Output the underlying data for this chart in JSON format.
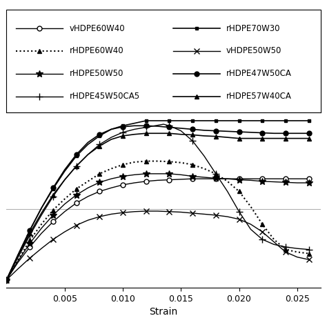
{
  "xlabel": "Strain",
  "xlim": [
    0.0,
    0.027
  ],
  "xticks": [
    0.005,
    0.01,
    0.015,
    0.02,
    0.025
  ],
  "hline_y": 14.0,
  "series": [
    {
      "label": "vHDPE60W40",
      "marker": "o",
      "markerfacecolor": "white",
      "markeredgecolor": "black",
      "color": "black",
      "linestyle": "-",
      "linewidth": 1.0,
      "markersize": 5,
      "markevery": 2,
      "points": [
        [
          0.0,
          0.0
        ],
        [
          0.001,
          3.5
        ],
        [
          0.002,
          6.5
        ],
        [
          0.003,
          9.2
        ],
        [
          0.004,
          11.5
        ],
        [
          0.005,
          13.5
        ],
        [
          0.006,
          15.2
        ],
        [
          0.007,
          16.5
        ],
        [
          0.008,
          17.5
        ],
        [
          0.009,
          18.2
        ],
        [
          0.01,
          18.8
        ],
        [
          0.011,
          19.2
        ],
        [
          0.012,
          19.5
        ],
        [
          0.013,
          19.7
        ],
        [
          0.014,
          19.8
        ],
        [
          0.015,
          19.9
        ],
        [
          0.016,
          20.0
        ],
        [
          0.017,
          20.0
        ],
        [
          0.018,
          20.0
        ],
        [
          0.019,
          20.0
        ],
        [
          0.02,
          20.0
        ],
        [
          0.021,
          20.0
        ],
        [
          0.022,
          20.0
        ],
        [
          0.023,
          20.0
        ],
        [
          0.024,
          20.0
        ],
        [
          0.025,
          20.0
        ],
        [
          0.026,
          20.0
        ]
      ]
    },
    {
      "label": "rHDPE60W40",
      "marker": "^",
      "markerfacecolor": "black",
      "markeredgecolor": "black",
      "color": "black",
      "linestyle": ":",
      "linewidth": 1.5,
      "markersize": 4,
      "markevery": 2,
      "points": [
        [
          0.0,
          0.0
        ],
        [
          0.001,
          4.0
        ],
        [
          0.002,
          7.8
        ],
        [
          0.003,
          11.0
        ],
        [
          0.004,
          13.8
        ],
        [
          0.005,
          16.0
        ],
        [
          0.006,
          18.0
        ],
        [
          0.007,
          19.5
        ],
        [
          0.008,
          21.0
        ],
        [
          0.009,
          22.0
        ],
        [
          0.01,
          22.8
        ],
        [
          0.011,
          23.3
        ],
        [
          0.012,
          23.5
        ],
        [
          0.013,
          23.5
        ],
        [
          0.014,
          23.4
        ],
        [
          0.015,
          23.2
        ],
        [
          0.016,
          22.8
        ],
        [
          0.017,
          22.0
        ],
        [
          0.018,
          21.0
        ],
        [
          0.019,
          19.5
        ],
        [
          0.02,
          17.5
        ],
        [
          0.021,
          14.5
        ],
        [
          0.022,
          11.0
        ],
        [
          0.023,
          8.0
        ],
        [
          0.024,
          6.0
        ],
        [
          0.025,
          5.5
        ],
        [
          0.026,
          5.2
        ]
      ]
    },
    {
      "label": "rHDPE50W50",
      "marker": "*",
      "markerfacecolor": "black",
      "markeredgecolor": "black",
      "color": "black",
      "linestyle": "-",
      "linewidth": 1.0,
      "markersize": 7,
      "markevery": 2,
      "points": [
        [
          0.0,
          0.0
        ],
        [
          0.001,
          3.8
        ],
        [
          0.002,
          7.2
        ],
        [
          0.003,
          10.2
        ],
        [
          0.004,
          12.8
        ],
        [
          0.005,
          15.0
        ],
        [
          0.006,
          16.8
        ],
        [
          0.007,
          18.2
        ],
        [
          0.008,
          19.3
        ],
        [
          0.009,
          20.0
        ],
        [
          0.01,
          20.5
        ],
        [
          0.011,
          20.8
        ],
        [
          0.012,
          21.0
        ],
        [
          0.013,
          21.0
        ],
        [
          0.014,
          21.0
        ],
        [
          0.015,
          20.8
        ],
        [
          0.016,
          20.5
        ],
        [
          0.017,
          20.3
        ],
        [
          0.018,
          20.1
        ],
        [
          0.019,
          20.0
        ],
        [
          0.02,
          19.8
        ],
        [
          0.021,
          19.7
        ],
        [
          0.022,
          19.5
        ],
        [
          0.023,
          19.4
        ],
        [
          0.024,
          19.3
        ],
        [
          0.025,
          19.2
        ],
        [
          0.026,
          19.2
        ]
      ]
    },
    {
      "label": "rHDPE45W50CA5",
      "marker": "+",
      "markerfacecolor": "black",
      "markeredgecolor": "black",
      "color": "black",
      "linestyle": "-",
      "linewidth": 1.0,
      "markersize": 7,
      "markevery": 2,
      "points": [
        [
          0.0,
          0.0
        ],
        [
          0.001,
          4.5
        ],
        [
          0.002,
          8.8
        ],
        [
          0.003,
          12.8
        ],
        [
          0.004,
          16.5
        ],
        [
          0.005,
          19.8
        ],
        [
          0.006,
          22.5
        ],
        [
          0.007,
          24.8
        ],
        [
          0.008,
          26.8
        ],
        [
          0.009,
          28.2
        ],
        [
          0.01,
          29.2
        ],
        [
          0.011,
          29.8
        ],
        [
          0.012,
          30.2
        ],
        [
          0.0135,
          30.8
        ],
        [
          0.014,
          30.5
        ],
        [
          0.015,
          29.5
        ],
        [
          0.016,
          27.5
        ],
        [
          0.017,
          24.5
        ],
        [
          0.018,
          21.0
        ],
        [
          0.019,
          17.5
        ],
        [
          0.02,
          13.5
        ],
        [
          0.021,
          10.0
        ],
        [
          0.022,
          8.0
        ],
        [
          0.023,
          7.0
        ],
        [
          0.024,
          6.5
        ],
        [
          0.025,
          6.2
        ],
        [
          0.026,
          6.0
        ]
      ]
    },
    {
      "label": "rHDPE70W30",
      "marker": "s",
      "markerfacecolor": "black",
      "markeredgecolor": "black",
      "color": "black",
      "linestyle": "-",
      "linewidth": 1.2,
      "markersize": 3,
      "markevery": 2,
      "points": [
        [
          0.0,
          0.0
        ],
        [
          0.001,
          5.0
        ],
        [
          0.002,
          9.8
        ],
        [
          0.003,
          14.2
        ],
        [
          0.004,
          18.0
        ],
        [
          0.005,
          21.5
        ],
        [
          0.006,
          24.5
        ],
        [
          0.007,
          26.8
        ],
        [
          0.008,
          28.5
        ],
        [
          0.009,
          29.8
        ],
        [
          0.01,
          30.5
        ],
        [
          0.011,
          31.0
        ],
        [
          0.012,
          31.5
        ],
        [
          0.013,
          31.5
        ],
        [
          0.014,
          31.5
        ],
        [
          0.015,
          31.5
        ],
        [
          0.016,
          31.5
        ],
        [
          0.017,
          31.5
        ],
        [
          0.018,
          31.5
        ],
        [
          0.019,
          31.5
        ],
        [
          0.02,
          31.5
        ],
        [
          0.021,
          31.5
        ],
        [
          0.022,
          31.5
        ],
        [
          0.023,
          31.5
        ],
        [
          0.024,
          31.5
        ],
        [
          0.025,
          31.5
        ],
        [
          0.026,
          31.5
        ]
      ]
    },
    {
      "label": "vHDPE50W50",
      "marker": "x",
      "markerfacecolor": "black",
      "markeredgecolor": "black",
      "color": "black",
      "linestyle": "-",
      "linewidth": 1.0,
      "markersize": 6,
      "markevery": 2,
      "points": [
        [
          0.0,
          0.0
        ],
        [
          0.001,
          2.2
        ],
        [
          0.002,
          4.3
        ],
        [
          0.003,
          6.2
        ],
        [
          0.004,
          8.0
        ],
        [
          0.005,
          9.5
        ],
        [
          0.006,
          10.8
        ],
        [
          0.007,
          11.8
        ],
        [
          0.008,
          12.5
        ],
        [
          0.009,
          13.0
        ],
        [
          0.01,
          13.3
        ],
        [
          0.011,
          13.5
        ],
        [
          0.012,
          13.6
        ],
        [
          0.013,
          13.6
        ],
        [
          0.014,
          13.5
        ],
        [
          0.015,
          13.4
        ],
        [
          0.016,
          13.2
        ],
        [
          0.017,
          13.0
        ],
        [
          0.018,
          12.8
        ],
        [
          0.019,
          12.5
        ],
        [
          0.02,
          12.0
        ],
        [
          0.021,
          11.0
        ],
        [
          0.022,
          9.5
        ],
        [
          0.023,
          7.5
        ],
        [
          0.024,
          5.5
        ],
        [
          0.025,
          4.5
        ],
        [
          0.026,
          4.0
        ]
      ]
    },
    {
      "label": "rHDPE47W50CA",
      "marker": "o",
      "markerfacecolor": "black",
      "markeredgecolor": "black",
      "color": "black",
      "linestyle": "-",
      "linewidth": 1.2,
      "markersize": 5,
      "markevery": 2,
      "points": [
        [
          0.0,
          0.0
        ],
        [
          0.001,
          5.0
        ],
        [
          0.002,
          9.8
        ],
        [
          0.003,
          14.2
        ],
        [
          0.004,
          18.2
        ],
        [
          0.005,
          21.8
        ],
        [
          0.006,
          24.8
        ],
        [
          0.007,
          27.2
        ],
        [
          0.008,
          28.8
        ],
        [
          0.009,
          29.8
        ],
        [
          0.01,
          30.3
        ],
        [
          0.011,
          30.5
        ],
        [
          0.012,
          30.5
        ],
        [
          0.013,
          30.4
        ],
        [
          0.014,
          30.2
        ],
        [
          0.015,
          30.0
        ],
        [
          0.016,
          29.8
        ],
        [
          0.017,
          29.6
        ],
        [
          0.018,
          29.5
        ],
        [
          0.019,
          29.4
        ],
        [
          0.02,
          29.3
        ],
        [
          0.021,
          29.2
        ],
        [
          0.022,
          29.1
        ],
        [
          0.023,
          29.0
        ],
        [
          0.024,
          29.0
        ],
        [
          0.025,
          29.0
        ],
        [
          0.026,
          29.0
        ]
      ]
    },
    {
      "label": "rHDPE57W40CA",
      "marker": "^",
      "markerfacecolor": "black",
      "markeredgecolor": "black",
      "color": "black",
      "linestyle": "-",
      "linewidth": 1.2,
      "markersize": 4,
      "markevery": 2,
      "points": [
        [
          0.0,
          0.0
        ],
        [
          0.001,
          4.8
        ],
        [
          0.002,
          9.2
        ],
        [
          0.003,
          13.2
        ],
        [
          0.004,
          16.8
        ],
        [
          0.005,
          19.8
        ],
        [
          0.006,
          22.5
        ],
        [
          0.007,
          24.8
        ],
        [
          0.008,
          26.5
        ],
        [
          0.009,
          27.8
        ],
        [
          0.01,
          28.5
        ],
        [
          0.011,
          28.8
        ],
        [
          0.012,
          29.0
        ],
        [
          0.013,
          29.0
        ],
        [
          0.014,
          29.0
        ],
        [
          0.015,
          28.8
        ],
        [
          0.016,
          28.7
        ],
        [
          0.017,
          28.5
        ],
        [
          0.018,
          28.4
        ],
        [
          0.019,
          28.2
        ],
        [
          0.02,
          28.0
        ],
        [
          0.021,
          28.0
        ],
        [
          0.022,
          28.0
        ],
        [
          0.023,
          28.0
        ],
        [
          0.024,
          28.0
        ],
        [
          0.025,
          28.0
        ],
        [
          0.026,
          28.0
        ]
      ]
    }
  ],
  "legend_col1": [
    {
      "label": "vHDPE60W40",
      "linestyle": "-",
      "marker": "o",
      "mfc": "white",
      "mec": "black",
      "ms": 5,
      "lw": 1.0,
      "dotted": false
    },
    {
      "label": "rHDPE60W40",
      "linestyle": ":",
      "marker": "^",
      "mfc": "black",
      "mec": "black",
      "ms": 4,
      "lw": 1.5,
      "dotted": true
    },
    {
      "label": "rHDPE50W50",
      "linestyle": "-",
      "marker": "*",
      "mfc": "black",
      "mec": "black",
      "ms": 7,
      "lw": 1.0,
      "dotted": false
    },
    {
      "label": "rHDPE45W50CA5",
      "linestyle": "-",
      "marker": "+",
      "mfc": "black",
      "mec": "black",
      "ms": 7,
      "lw": 1.0,
      "dotted": false
    }
  ],
  "legend_col2": [
    {
      "label": "rHDPE70W30",
      "linestyle": "-",
      "marker": "s",
      "mfc": "black",
      "mec": "black",
      "ms": 3,
      "lw": 1.2,
      "dotted": false
    },
    {
      "label": "vHDPE50W50",
      "linestyle": "-",
      "marker": "x",
      "mfc": "black",
      "mec": "black",
      "ms": 6,
      "lw": 1.0,
      "dotted": false
    },
    {
      "label": "rHDPE47W50CA",
      "linestyle": "-",
      "marker": "o",
      "mfc": "black",
      "mec": "black",
      "ms": 5,
      "lw": 1.2,
      "dotted": false
    },
    {
      "label": "rHDPE57W40CA",
      "linestyle": "-",
      "marker": "^",
      "mfc": "black",
      "mec": "black",
      "ms": 4,
      "lw": 1.2,
      "dotted": false
    }
  ]
}
